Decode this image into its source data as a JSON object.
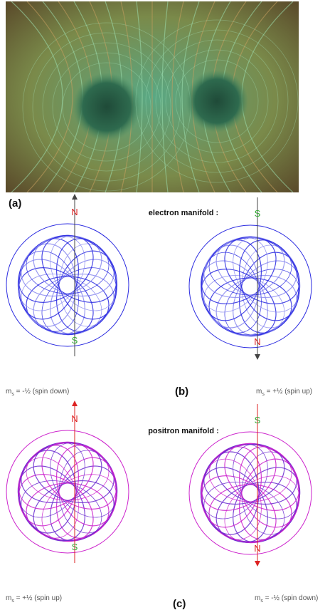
{
  "panel_a": {
    "label": "(a)"
  },
  "panel_b": {
    "label": "(b)",
    "title": "electron manifold :",
    "left": {
      "top_pole": "N",
      "bottom_pole": "S",
      "spin": {
        "symbol": "m",
        "subscript": "s",
        "text": " = -½ (spin down)"
      }
    },
    "right": {
      "top_pole": "S",
      "bottom_pole": "N",
      "spin": {
        "symbol": "m",
        "subscript": "s",
        "text": " = +½ (spin up)"
      }
    }
  },
  "panel_c": {
    "label": "(c)",
    "title": "positron manifold :",
    "left": {
      "top_pole": "N",
      "bottom_pole": "S",
      "spin": {
        "symbol": "m",
        "subscript": "s",
        "text": " = +½ (spin up)"
      }
    },
    "right": {
      "top_pole": "S",
      "bottom_pole": "N",
      "spin": {
        "symbol": "m",
        "subscript": "s",
        "text": " = -½ (spin down)"
      }
    }
  }
}
